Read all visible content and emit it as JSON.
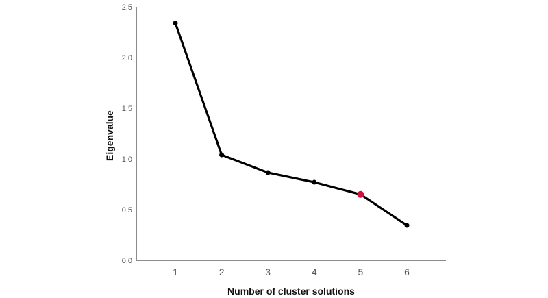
{
  "chart_data": {
    "type": "line",
    "title": "",
    "xlabel": "Number of cluster solutions",
    "ylabel": "Eigenvalue",
    "categories": [
      "1",
      "2",
      "3",
      "4",
      "5",
      "6"
    ],
    "x": [
      1,
      2,
      3,
      4,
      5,
      6
    ],
    "values": [
      2.34,
      1.04,
      0.865,
      0.77,
      0.65,
      0.345
    ],
    "highlight_index": 4,
    "yticks": [
      "0,0",
      "0,5",
      "1,0",
      "1,5",
      "2,0",
      "2,5"
    ],
    "ylim": [
      0,
      2.5
    ],
    "grid": false,
    "legend": null,
    "colors": {
      "line": "#000000",
      "marker": "#000000",
      "highlight": "#d4113c",
      "axis": "#666666"
    }
  }
}
